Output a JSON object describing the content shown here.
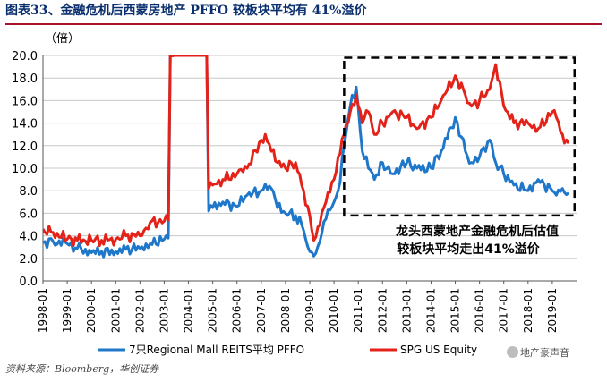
{
  "header": {
    "title": "图表33、金融危机后西蒙房地产 PFFO 较板块平均有 41%溢价",
    "unit": "（倍）",
    "source": "资料来源：Bloomberg，华创证券",
    "watermark": "地产豪声音"
  },
  "colors": {
    "blue": "#1f77c9",
    "red": "#e32319",
    "title": "#0a2f6e"
  },
  "chart_data": {
    "type": "line",
    "ylim": [
      0,
      20
    ],
    "yticks": [
      "0.0",
      "2.0",
      "4.0",
      "6.0",
      "8.0",
      "10.0",
      "12.0",
      "14.0",
      "16.0",
      "18.0",
      "20.0"
    ],
    "xlim": [
      "1998-01",
      "2019-12"
    ],
    "xticks": [
      "1998-01",
      "1999-01",
      "2000-01",
      "2001-01",
      "2002-01",
      "2003-01",
      "2004-01",
      "2005-01",
      "2006-01",
      "2007-01",
      "2008-01",
      "2009-01",
      "2010-01",
      "2011-01",
      "2012-01",
      "2013-01",
      "2014-01",
      "2015-01",
      "2016-01",
      "2017-01",
      "2018-01",
      "2019-01"
    ],
    "grid": true,
    "legend_position": "bottom",
    "series": [
      {
        "name": "7只Regional Mall REITS平均 PFFO",
        "color": "#1f77c9",
        "points": [
          [
            "1998-01",
            3.4
          ],
          [
            "1998-06",
            3.5
          ],
          [
            "1999-01",
            3.3
          ],
          [
            "1999-06",
            2.9
          ],
          [
            "2000-01",
            2.5
          ],
          [
            "2000-06",
            2.6
          ],
          [
            "2001-01",
            2.6
          ],
          [
            "2001-06",
            2.8
          ],
          [
            "2002-01",
            2.9
          ],
          [
            "2002-06",
            3.3
          ],
          [
            "2003-01",
            3.7
          ],
          [
            "2003-03",
            3.8
          ],
          [
            "2003-04",
            20.5
          ],
          [
            "2004-10",
            20.5
          ],
          [
            "2004-11",
            6.2
          ],
          [
            "2005-01",
            6.5
          ],
          [
            "2005-06",
            7.0
          ],
          [
            "2006-01",
            6.6
          ],
          [
            "2006-06",
            7.6
          ],
          [
            "2007-01",
            8.0
          ],
          [
            "2007-03",
            8.6
          ],
          [
            "2007-06",
            8.2
          ],
          [
            "2007-09",
            6.5
          ],
          [
            "2008-01",
            6.0
          ],
          [
            "2008-06",
            5.8
          ],
          [
            "2008-09",
            5.0
          ],
          [
            "2009-01",
            2.6
          ],
          [
            "2009-03",
            2.2
          ],
          [
            "2009-06",
            3.5
          ],
          [
            "2009-09",
            5.5
          ],
          [
            "2010-01",
            7.0
          ],
          [
            "2010-03",
            8.0
          ],
          [
            "2010-06",
            12.0
          ],
          [
            "2010-09",
            15.5
          ],
          [
            "2010-12",
            17.2
          ],
          [
            "2011-03",
            11.5
          ],
          [
            "2011-06",
            10.0
          ],
          [
            "2011-09",
            9.0
          ],
          [
            "2012-01",
            10.5
          ],
          [
            "2012-06",
            9.5
          ],
          [
            "2013-01",
            10.5
          ],
          [
            "2013-06",
            10.0
          ],
          [
            "2014-01",
            10.0
          ],
          [
            "2014-06",
            11.5
          ],
          [
            "2015-01",
            14.5
          ],
          [
            "2015-06",
            11.5
          ],
          [
            "2015-09",
            10.5
          ],
          [
            "2016-01",
            11.0
          ],
          [
            "2016-06",
            12.5
          ],
          [
            "2016-09",
            10.5
          ],
          [
            "2017-01",
            9.5
          ],
          [
            "2017-06",
            8.5
          ],
          [
            "2018-01",
            8.0
          ],
          [
            "2018-06",
            9.0
          ],
          [
            "2019-01",
            8.0
          ],
          [
            "2019-03",
            7.6
          ],
          [
            "2019-06",
            8.2
          ],
          [
            "2019-09",
            7.8
          ]
        ]
      },
      {
        "name": "SPG US Equity",
        "color": "#e32319",
        "points": [
          [
            "1998-01",
            4.6
          ],
          [
            "1998-06",
            4.3
          ],
          [
            "1999-01",
            3.7
          ],
          [
            "1999-06",
            3.6
          ],
          [
            "2000-01",
            3.6
          ],
          [
            "2000-06",
            3.6
          ],
          [
            "2001-01",
            3.7
          ],
          [
            "2001-06",
            4.0
          ],
          [
            "2002-01",
            4.0
          ],
          [
            "2002-06",
            5.2
          ],
          [
            "2003-01",
            5.3
          ],
          [
            "2003-03",
            5.4
          ],
          [
            "2003-04",
            20.5
          ],
          [
            "2004-10",
            20.5
          ],
          [
            "2004-11",
            8.2
          ],
          [
            "2005-01",
            8.5
          ],
          [
            "2005-06",
            9.0
          ],
          [
            "2006-01",
            9.5
          ],
          [
            "2006-06",
            10.0
          ],
          [
            "2007-01",
            12.5
          ],
          [
            "2007-03",
            13.0
          ],
          [
            "2007-06",
            11.5
          ],
          [
            "2007-09",
            10.5
          ],
          [
            "2008-01",
            10.0
          ],
          [
            "2008-06",
            10.5
          ],
          [
            "2008-09",
            8.5
          ],
          [
            "2009-01",
            5.8
          ],
          [
            "2009-03",
            3.6
          ],
          [
            "2009-06",
            5.0
          ],
          [
            "2009-09",
            7.0
          ],
          [
            "2010-01",
            9.0
          ],
          [
            "2010-03",
            11.0
          ],
          [
            "2010-06",
            13.0
          ],
          [
            "2010-09",
            15.0
          ],
          [
            "2010-12",
            16.5
          ],
          [
            "2011-03",
            14.0
          ],
          [
            "2011-06",
            15.0
          ],
          [
            "2011-09",
            13.0
          ],
          [
            "2012-01",
            14.0
          ],
          [
            "2012-06",
            15.0
          ],
          [
            "2013-01",
            14.5
          ],
          [
            "2013-06",
            13.5
          ],
          [
            "2014-01",
            14.5
          ],
          [
            "2014-06",
            16.0
          ],
          [
            "2015-01",
            18.2
          ],
          [
            "2015-06",
            16.5
          ],
          [
            "2015-09",
            15.5
          ],
          [
            "2016-01",
            16.0
          ],
          [
            "2016-06",
            17.0
          ],
          [
            "2016-09",
            19.2
          ],
          [
            "2017-01",
            15.5
          ],
          [
            "2017-06",
            14.0
          ],
          [
            "2018-01",
            14.0
          ],
          [
            "2018-06",
            13.5
          ],
          [
            "2019-01",
            15.0
          ],
          [
            "2019-03",
            14.5
          ],
          [
            "2019-06",
            13.0
          ],
          [
            "2019-09",
            12.2
          ]
        ]
      }
    ],
    "annotation": {
      "text_line1": "龙头西蒙地产金融危机后估值",
      "text_line2": "较板块平均走出41%溢价",
      "box_from": "2010-06",
      "box_to": "2019-12",
      "box_ymin": 5.8,
      "box_ymax": 19.8
    }
  }
}
